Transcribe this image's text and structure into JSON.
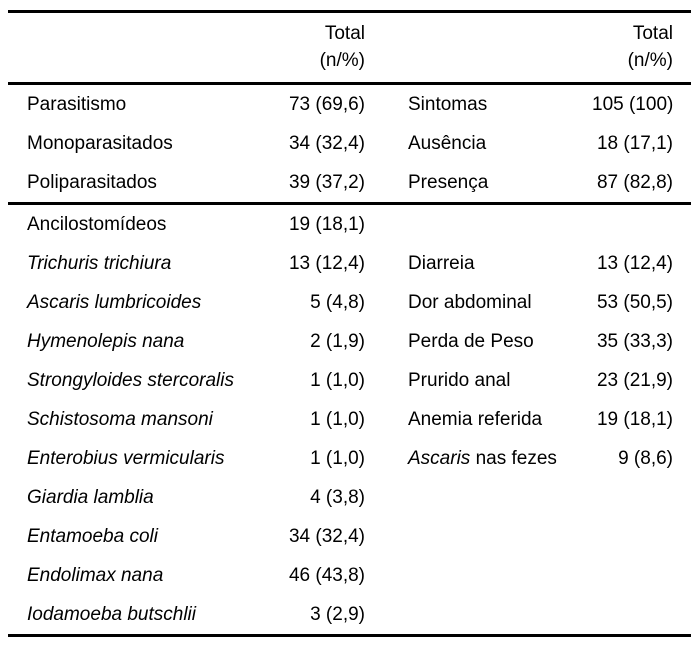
{
  "colors": {
    "text": "#000000",
    "background": "#ffffff",
    "rule": "#000000"
  },
  "table": {
    "header": {
      "left": {
        "line1": "Total",
        "line2": "(n/%)"
      },
      "right": {
        "line1": "Total",
        "line2": "(n/%)"
      }
    },
    "section1": [
      {
        "label_left": "Parasitismo",
        "value_left": "73 (69,6)",
        "label_right": "Sintomas",
        "value_right": "105 (100)"
      },
      {
        "label_left": "Monoparasitados",
        "value_left": "34 (32,4)",
        "label_right": "Ausência",
        "value_right": "18 (17,1)"
      },
      {
        "label_left": "Poliparasitados",
        "value_left": "39 (37,2)",
        "label_right": "Presença",
        "value_right": "87 (82,8)"
      }
    ],
    "section2": [
      {
        "label_left": "Ancilostomídeos",
        "value_left": "19 (18,1)",
        "label_right": "",
        "value_right": ""
      },
      {
        "label_left": "Trichuris trichiura",
        "value_left": "13 (12,4)",
        "label_right": "Diarreia",
        "value_right": "13 (12,4)"
      },
      {
        "label_left": "Ascaris lumbricoides",
        "value_left": "5 (4,8)",
        "label_right": "Dor abdominal",
        "value_right": "53 (50,5)"
      },
      {
        "label_left": "Hymenolepis nana",
        "value_left": "2 (1,9)",
        "label_right": "Perda de Peso",
        "value_right": "35 (33,3)"
      },
      {
        "label_left": "Strongyloides stercoralis",
        "value_left": "1 (1,0)",
        "label_right": "Prurido anal",
        "value_right": "23 (21,9)"
      },
      {
        "label_left": "Schistosoma mansoni",
        "value_left": "1 (1,0)",
        "label_right": "Anemia referida",
        "value_right": "19 (18,1)"
      },
      {
        "label_left": "Enterobius vermicularis",
        "value_left": "1 (1,0)",
        "label_right_em": "Ascaris",
        "label_right_rest": "nas fezes",
        "value_right": "9 (8,6)"
      },
      {
        "label_left": "Giardia lamblia",
        "value_left": "4 (3,8)",
        "label_right": "",
        "value_right": ""
      },
      {
        "label_left": "Entamoeba coli",
        "value_left": "34 (32,4)",
        "label_right": "",
        "value_right": ""
      },
      {
        "label_left": "Endolimax nana",
        "value_left": "46 (43,8)",
        "label_right": "",
        "value_right": ""
      },
      {
        "label_left": "Iodamoeba butschlii",
        "value_left": "3 (2,9)",
        "label_right": "",
        "value_right": ""
      }
    ]
  }
}
